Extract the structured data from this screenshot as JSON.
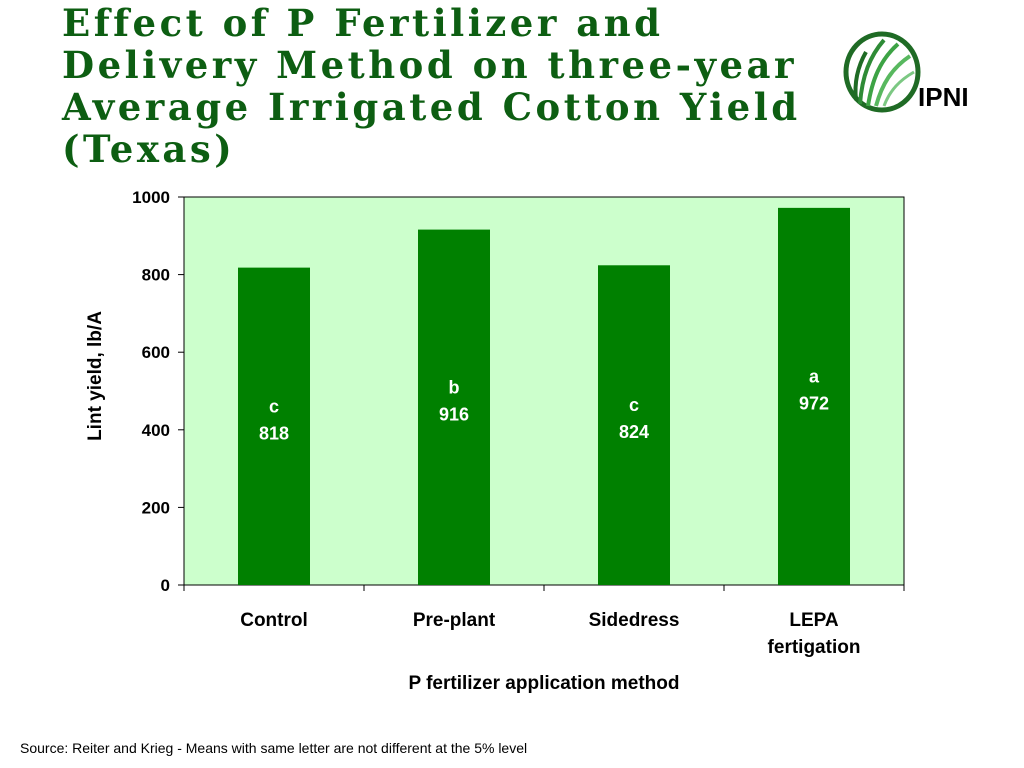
{
  "title": "Effect of P Fertilizer and Delivery Method on three-year Average Irrigated Cotton Yield (Texas)",
  "logo": {
    "text": "IPNI",
    "icon": "ipni-leaf-logo-icon"
  },
  "source": "Source: Reiter and Krieg - Means with same letter are not different at the 5% level",
  "colors": {
    "plot_bg": "#ccffcc",
    "bar": "#008000",
    "title": "#0d5e12",
    "bar_label": "#ffffff"
  },
  "chart_data": {
    "type": "bar",
    "xlabel": "P fertilizer application method",
    "ylabel": "Lint yield, lb/A",
    "ylim": [
      0,
      1000
    ],
    "yticks": [
      0,
      200,
      400,
      600,
      800,
      1000
    ],
    "grid": false,
    "categories": [
      [
        "Control"
      ],
      [
        "Pre-plant"
      ],
      [
        "Sidedress"
      ],
      [
        "LEPA",
        "fertigation"
      ]
    ],
    "values": [
      818,
      916,
      824,
      972
    ],
    "letters": [
      "c",
      "b",
      "c",
      "a"
    ]
  }
}
